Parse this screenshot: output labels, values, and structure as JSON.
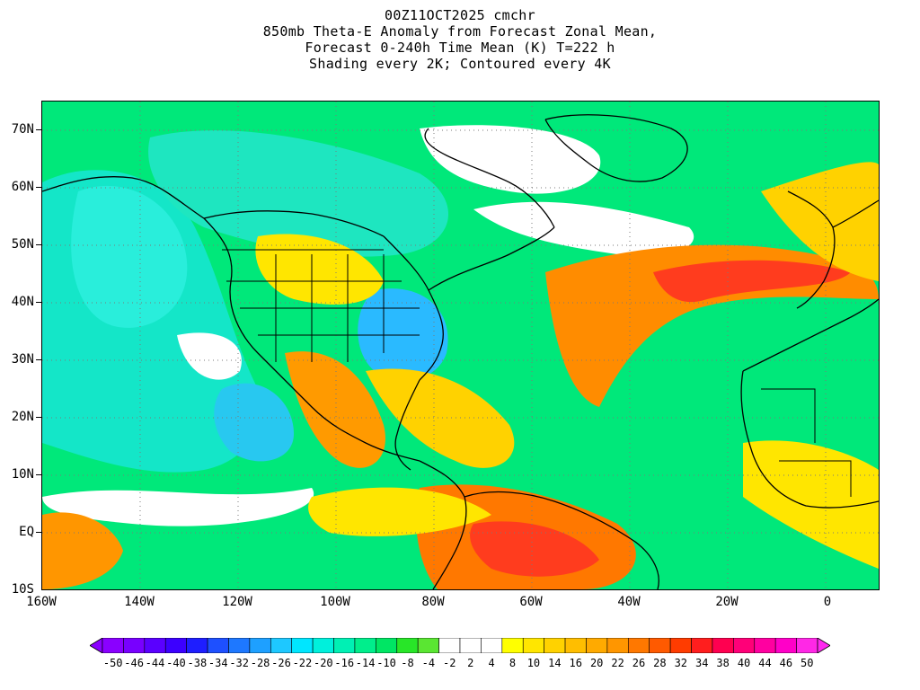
{
  "title": {
    "line1": "00Z11OCT2025 cmchr",
    "line2": "850mb Theta-E Anomaly from Forecast Zonal Mean,",
    "line3": "Forecast 0-240h Time Mean (K) T=222 h",
    "line4": "Shading every 2K; Contoured every 4K"
  },
  "axes": {
    "lat_labels": [
      "70N",
      "60N",
      "50N",
      "40N",
      "30N",
      "20N",
      "10N",
      "EQ",
      "10S"
    ],
    "lon_labels": [
      "160W",
      "140W",
      "120W",
      "100W",
      "80W",
      "60W",
      "40W",
      "20W",
      "0"
    ]
  },
  "colorbar": {
    "labels": [
      "-50",
      "-46",
      "-44",
      "-40",
      "-38",
      "-34",
      "-32",
      "-28",
      "-26",
      "-22",
      "-20",
      "-16",
      "-14",
      "-10",
      "-8",
      "-4",
      "-2",
      "2",
      "4",
      "8",
      "10",
      "14",
      "16",
      "20",
      "22",
      "26",
      "28",
      "32",
      "34",
      "38",
      "40",
      "44",
      "46",
      "50"
    ],
    "colors": [
      "#8a00ff",
      "#7800ff",
      "#5a00ff",
      "#3c00ff",
      "#1e1eff",
      "#1e50ff",
      "#1e78ff",
      "#1ea0ff",
      "#1ec8ff",
      "#00e6ff",
      "#00f0dc",
      "#00f0b4",
      "#00ee8c",
      "#00e664",
      "#28e628",
      "#5ae632",
      "#ffffff",
      "#ffffff",
      "#ffffff",
      "#ffff00",
      "#ffe600",
      "#ffd200",
      "#ffbe00",
      "#ffaa00",
      "#ff9600",
      "#ff7800",
      "#ff5a00",
      "#ff3c00",
      "#ff1e1e",
      "#ff0050",
      "#ff0078",
      "#ff00a0",
      "#ff00c8",
      "#ff28e6"
    ],
    "left_arrow_color": "#8a00ff",
    "right_arrow_color": "#ff28f0"
  },
  "map_colors": {
    "background": "#00e87a",
    "land_lines": "#000000",
    "grid": "#7a7a7a"
  }
}
